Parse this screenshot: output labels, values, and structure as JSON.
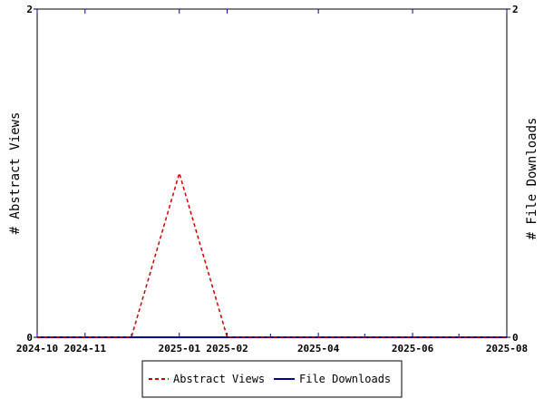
{
  "chart_data": {
    "type": "line",
    "x_type": "date",
    "xlim": [
      "2024-10-01",
      "2025-08-01"
    ],
    "x_ticks": [
      "2024-10",
      "2024-11",
      "2025-01",
      "2025-02",
      "2025-04",
      "2025-06",
      "2025-08"
    ],
    "x_minor_ticks": [
      "2024-12-01",
      "2025-03-01",
      "2025-05-01",
      "2025-07-01"
    ],
    "ylabel_left": "# Abstract Views",
    "ylabel_right": "# File Downloads",
    "ylim_left": [
      0,
      2
    ],
    "ylim_right": [
      0,
      2
    ],
    "y_ticks_left": [
      "0",
      "2"
    ],
    "y_ticks_right": [
      "0",
      "2"
    ],
    "grid": false,
    "legend_position": "bottom-center",
    "series": [
      {
        "name": "Abstract Views",
        "axis": "left",
        "color": "#cc0000",
        "style": "dashed",
        "points": [
          {
            "x": "2024-10-01",
            "y": 0
          },
          {
            "x": "2024-11-01",
            "y": 0
          },
          {
            "x": "2024-12-01",
            "y": 0
          },
          {
            "x": "2025-01-01",
            "y": 1
          },
          {
            "x": "2025-02-01",
            "y": 0
          },
          {
            "x": "2025-03-01",
            "y": 0
          },
          {
            "x": "2025-04-01",
            "y": 0
          },
          {
            "x": "2025-05-01",
            "y": 0
          },
          {
            "x": "2025-06-01",
            "y": 0
          },
          {
            "x": "2025-07-01",
            "y": 0
          },
          {
            "x": "2025-08-01",
            "y": 0
          }
        ]
      },
      {
        "name": "File Downloads",
        "axis": "right",
        "color": "#000099",
        "style": "solid",
        "points": [
          {
            "x": "2024-10-01",
            "y": 0
          },
          {
            "x": "2024-11-01",
            "y": 0
          },
          {
            "x": "2024-12-01",
            "y": 0
          },
          {
            "x": "2025-01-01",
            "y": 0
          },
          {
            "x": "2025-02-01",
            "y": 0
          },
          {
            "x": "2025-03-01",
            "y": 0
          },
          {
            "x": "2025-04-01",
            "y": 0
          },
          {
            "x": "2025-05-01",
            "y": 0
          },
          {
            "x": "2025-06-01",
            "y": 0
          },
          {
            "x": "2025-07-01",
            "y": 0
          },
          {
            "x": "2025-08-01",
            "y": 0
          }
        ]
      }
    ]
  }
}
